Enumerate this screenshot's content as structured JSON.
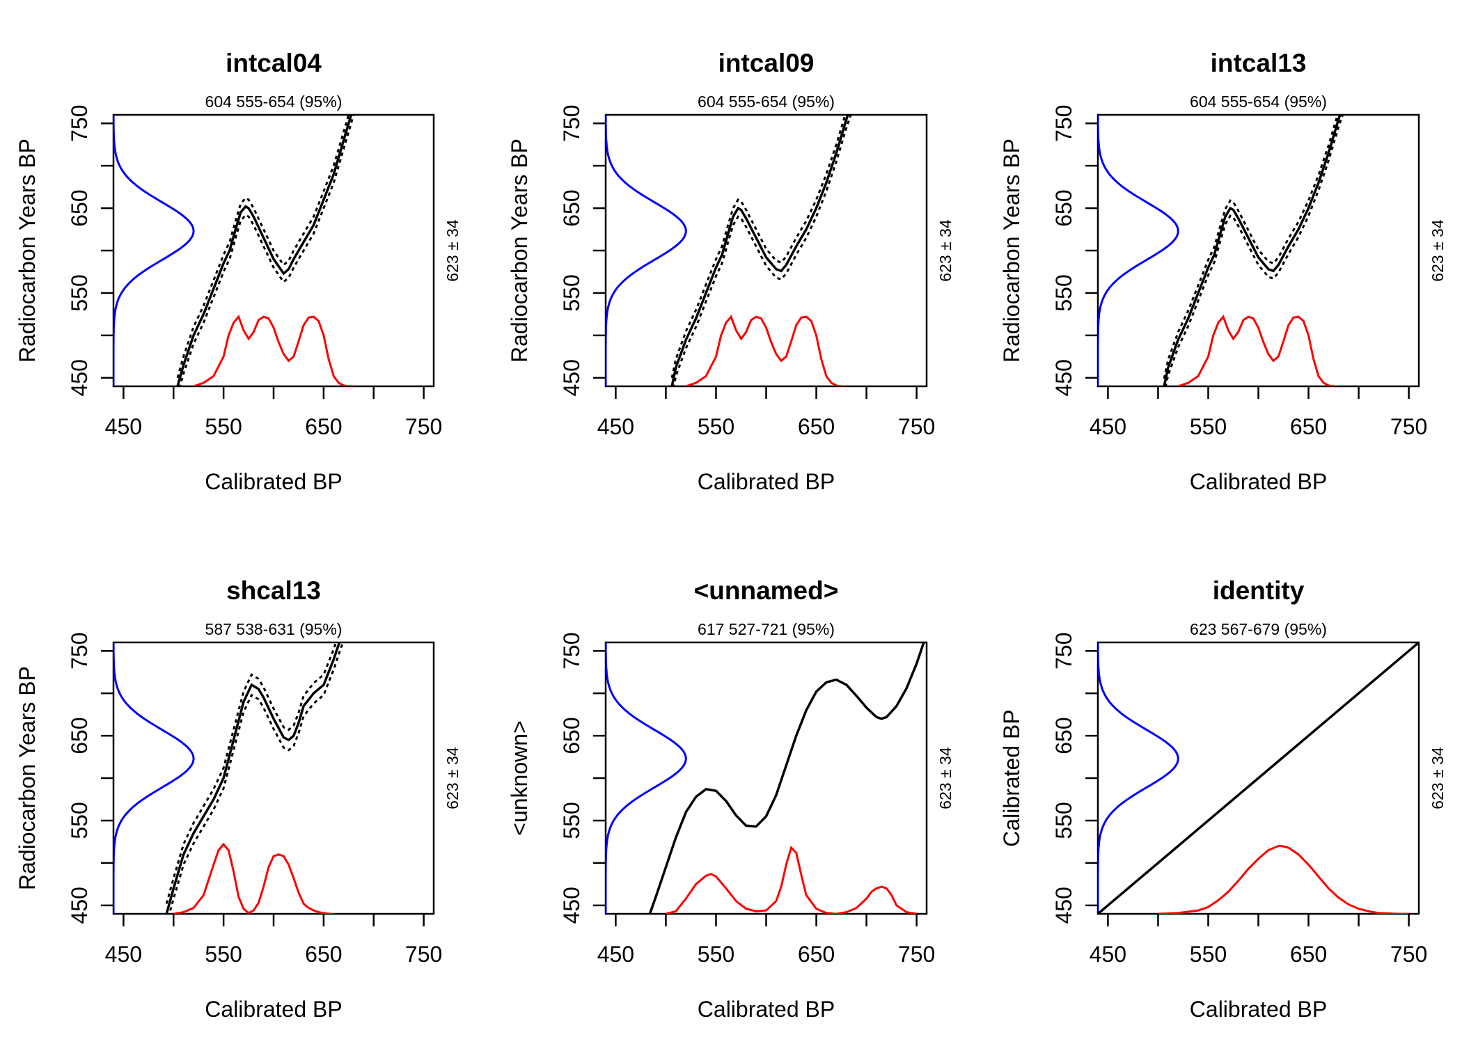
{
  "figure": {
    "background": "#ffffff"
  },
  "colors": {
    "prior": "#0000ff",
    "posterior": "#ff0000",
    "curve": "#000000"
  },
  "chart_data": [
    {
      "type": "line",
      "title": "intcal04",
      "subtitle": "604 555-654 (95%)",
      "xlabel": "Calibrated BP",
      "ylabel": "Radiocarbon Years BP",
      "side_label": "623 ± 34",
      "xlim": [
        440,
        760
      ],
      "ylim": [
        440,
        760
      ],
      "x_ticks": [
        450,
        500,
        550,
        600,
        650,
        700,
        750
      ],
      "x_tick_labels": [
        "450",
        "550",
        "650",
        "750"
      ],
      "y_ticks": [
        450,
        500,
        550,
        600,
        650,
        700,
        750
      ],
      "y_tick_labels": [
        "450",
        "550",
        "650",
        "750"
      ],
      "prior": {
        "mean": 623,
        "sd": 34,
        "peak": 520
      },
      "curve": {
        "x": [
          504,
          510,
          520,
          530,
          540,
          550,
          556,
          562,
          567,
          572,
          575,
          580,
          590,
          600,
          610,
          615,
          620,
          630,
          640,
          650,
          660,
          670,
          680
        ],
        "y": [
          440,
          465,
          500,
          525,
          555,
          585,
          600,
          625,
          645,
          652,
          650,
          640,
          615,
          590,
          573,
          578,
          590,
          610,
          630,
          660,
          690,
          730,
          770
        ],
        "band": 10
      },
      "posterior": {
        "x": [
          520,
          530,
          540,
          550,
          555,
          560,
          565,
          570,
          575,
          580,
          585,
          590,
          595,
          600,
          605,
          610,
          615,
          620,
          625,
          630,
          635,
          640,
          645,
          650,
          655,
          660,
          665,
          670,
          675,
          680
        ],
        "y": [
          440,
          444,
          452,
          475,
          500,
          515,
          522,
          506,
          496,
          504,
          518,
          522,
          520,
          509,
          492,
          478,
          470,
          475,
          493,
          512,
          521,
          522,
          517,
          500,
          472,
          452,
          444,
          441,
          440,
          440
        ]
      }
    },
    {
      "type": "line",
      "title": "intcal09",
      "subtitle": "604 555-654 (95%)",
      "xlabel": "Calibrated BP",
      "ylabel": "Radiocarbon Years BP",
      "side_label": "623 ± 34",
      "xlim": [
        440,
        760
      ],
      "ylim": [
        440,
        760
      ],
      "x_ticks": [
        450,
        500,
        550,
        600,
        650,
        700,
        750
      ],
      "x_tick_labels": [
        "450",
        "550",
        "650",
        "750"
      ],
      "y_ticks": [
        450,
        500,
        550,
        600,
        650,
        700,
        750
      ],
      "y_tick_labels": [
        "450",
        "550",
        "650",
        "750"
      ],
      "prior": {
        "mean": 623,
        "sd": 34,
        "peak": 520
      },
      "curve": {
        "x": [
          506,
          510,
          520,
          530,
          540,
          550,
          556,
          562,
          567,
          572,
          575,
          580,
          590,
          600,
          610,
          615,
          620,
          630,
          640,
          650,
          660,
          670,
          680,
          690
        ],
        "y": [
          440,
          462,
          495,
          520,
          550,
          580,
          595,
          620,
          640,
          650,
          648,
          638,
          615,
          592,
          578,
          576,
          583,
          605,
          625,
          650,
          680,
          715,
          755,
          790
        ],
        "band": 10
      },
      "posterior": {
        "x": [
          520,
          530,
          540,
          550,
          555,
          560,
          565,
          570,
          575,
          580,
          585,
          590,
          595,
          600,
          605,
          610,
          615,
          620,
          625,
          630,
          635,
          640,
          645,
          650,
          655,
          660,
          665,
          670,
          675,
          680
        ],
        "y": [
          440,
          444,
          452,
          475,
          500,
          515,
          522,
          506,
          496,
          504,
          518,
          522,
          520,
          509,
          492,
          478,
          470,
          475,
          493,
          512,
          521,
          522,
          517,
          500,
          472,
          452,
          444,
          441,
          440,
          440
        ]
      }
    },
    {
      "type": "line",
      "title": "intcal13",
      "subtitle": "604 555-654 (95%)",
      "xlabel": "Calibrated BP",
      "ylabel": "Radiocarbon Years BP",
      "side_label": "623 ± 34",
      "xlim": [
        440,
        760
      ],
      "ylim": [
        440,
        760
      ],
      "x_ticks": [
        450,
        500,
        550,
        600,
        650,
        700,
        750
      ],
      "x_tick_labels": [
        "450",
        "550",
        "650",
        "750"
      ],
      "y_ticks": [
        450,
        500,
        550,
        600,
        650,
        700,
        750
      ],
      "y_tick_labels": [
        "450",
        "550",
        "650",
        "750"
      ],
      "prior": {
        "mean": 623,
        "sd": 34,
        "peak": 520
      },
      "curve": {
        "x": [
          506,
          510,
          520,
          530,
          540,
          550,
          556,
          562,
          567,
          572,
          575,
          580,
          590,
          600,
          610,
          615,
          620,
          630,
          640,
          650,
          660,
          670,
          680,
          690
        ],
        "y": [
          440,
          462,
          495,
          520,
          550,
          580,
          595,
          620,
          640,
          650,
          648,
          638,
          615,
          592,
          578,
          576,
          583,
          605,
          625,
          650,
          680,
          715,
          755,
          790
        ],
        "band": 9
      },
      "posterior": {
        "x": [
          520,
          530,
          540,
          550,
          555,
          560,
          565,
          570,
          575,
          580,
          585,
          590,
          595,
          600,
          605,
          610,
          615,
          620,
          625,
          630,
          635,
          640,
          645,
          650,
          655,
          660,
          665,
          670,
          675,
          680
        ],
        "y": [
          440,
          444,
          452,
          475,
          500,
          515,
          522,
          506,
          496,
          504,
          518,
          522,
          520,
          509,
          492,
          478,
          470,
          475,
          493,
          512,
          521,
          522,
          517,
          500,
          472,
          452,
          444,
          441,
          440,
          440
        ]
      }
    },
    {
      "type": "line",
      "title": "shcal13",
      "subtitle": "587 538-631 (95%)",
      "xlabel": "Calibrated BP",
      "ylabel": "Radiocarbon Years BP",
      "side_label": "623 ± 34",
      "xlim": [
        440,
        760
      ],
      "ylim": [
        440,
        760
      ],
      "x_ticks": [
        450,
        500,
        550,
        600,
        650,
        700,
        750
      ],
      "x_tick_labels": [
        "450",
        "550",
        "650",
        "750"
      ],
      "y_ticks": [
        450,
        500,
        550,
        600,
        650,
        700,
        750
      ],
      "y_tick_labels": [
        "450",
        "550",
        "650",
        "750"
      ],
      "prior": {
        "mean": 623,
        "sd": 34,
        "peak": 520
      },
      "curve": {
        "x": [
          493,
          500,
          510,
          520,
          530,
          540,
          550,
          560,
          570,
          578,
          585,
          590,
          600,
          610,
          615,
          620,
          625,
          630,
          640,
          650,
          660,
          670
        ],
        "y": [
          440,
          470,
          510,
          535,
          555,
          575,
          600,
          645,
          690,
          710,
          705,
          695,
          670,
          648,
          645,
          650,
          665,
          685,
          700,
          710,
          740,
          775
        ],
        "band": 12
      },
      "posterior": {
        "x": [
          500,
          510,
          520,
          530,
          540,
          545,
          550,
          555,
          560,
          565,
          570,
          575,
          580,
          585,
          590,
          595,
          600,
          605,
          610,
          615,
          620,
          625,
          630,
          635,
          640,
          645,
          650,
          655,
          660
        ],
        "y": [
          440,
          442,
          447,
          462,
          498,
          515,
          522,
          515,
          490,
          460,
          446,
          441,
          444,
          453,
          472,
          495,
          508,
          510,
          508,
          498,
          482,
          465,
          452,
          447,
          444,
          442,
          441,
          440,
          440
        ]
      }
    },
    {
      "type": "line",
      "title": "<unnamed>",
      "subtitle": "617 527-721 (95%)",
      "xlabel": "Calibrated BP",
      "ylabel": "<unknown>",
      "side_label": "623 ± 34",
      "xlim": [
        440,
        760
      ],
      "ylim": [
        440,
        760
      ],
      "x_ticks": [
        450,
        500,
        550,
        600,
        650,
        700,
        750
      ],
      "x_tick_labels": [
        "450",
        "550",
        "650",
        "750"
      ],
      "y_ticks": [
        450,
        500,
        550,
        600,
        650,
        700,
        750
      ],
      "y_tick_labels": [
        "450",
        "550",
        "650",
        "750"
      ],
      "prior": {
        "mean": 623,
        "sd": 34,
        "peak": 520
      },
      "curve": {
        "x": [
          484,
          490,
          500,
          510,
          520,
          530,
          540,
          550,
          560,
          570,
          580,
          590,
          600,
          610,
          620,
          630,
          640,
          650,
          660,
          670,
          680,
          690,
          700,
          710,
          715,
          720,
          730,
          740,
          750,
          760
        ],
        "y": [
          440,
          460,
          495,
          530,
          560,
          578,
          587,
          585,
          573,
          556,
          544,
          543,
          555,
          580,
          615,
          650,
          680,
          702,
          713,
          716,
          710,
          697,
          683,
          672,
          670,
          672,
          685,
          706,
          735,
          770
        ],
        "band": 0
      },
      "posterior": {
        "x": [
          500,
          510,
          520,
          530,
          540,
          545,
          550,
          560,
          570,
          580,
          590,
          600,
          610,
          615,
          620,
          625,
          630,
          635,
          640,
          650,
          660,
          670,
          680,
          690,
          700,
          705,
          710,
          715,
          720,
          725,
          730,
          740,
          750
        ],
        "y": [
          440,
          443,
          458,
          475,
          485,
          487,
          484,
          470,
          455,
          446,
          443,
          444,
          455,
          472,
          498,
          518,
          512,
          486,
          462,
          446,
          441,
          440,
          442,
          447,
          458,
          466,
          470,
          472,
          470,
          462,
          450,
          442,
          440
        ]
      }
    },
    {
      "type": "line",
      "title": "identity",
      "subtitle": "623 567-679 (95%)",
      "xlabel": "Calibrated BP",
      "ylabel": "Calibrated BP",
      "side_label": "623 ± 34",
      "xlim": [
        440,
        760
      ],
      "ylim": [
        440,
        760
      ],
      "x_ticks": [
        450,
        500,
        550,
        600,
        650,
        700,
        750
      ],
      "x_tick_labels": [
        "450",
        "550",
        "650",
        "750"
      ],
      "y_ticks": [
        450,
        500,
        550,
        600,
        650,
        700,
        750
      ],
      "y_tick_labels": [
        "450",
        "550",
        "650",
        "750"
      ],
      "prior": {
        "mean": 623,
        "sd": 34,
        "peak": 520
      },
      "curve": {
        "x": [
          440,
          760
        ],
        "y": [
          440,
          760
        ],
        "band": 0
      },
      "posterior": {
        "x": [
          500,
          520,
          540,
          550,
          560,
          570,
          580,
          590,
          600,
          610,
          620,
          623,
          630,
          640,
          650,
          660,
          670,
          680,
          690,
          700,
          710,
          720,
          740,
          750
        ],
        "y": [
          440,
          441,
          444,
          448,
          456,
          466,
          479,
          493,
          505,
          515,
          520,
          520,
          518,
          510,
          498,
          484,
          470,
          459,
          451,
          446,
          443,
          441,
          440,
          440
        ]
      }
    }
  ]
}
